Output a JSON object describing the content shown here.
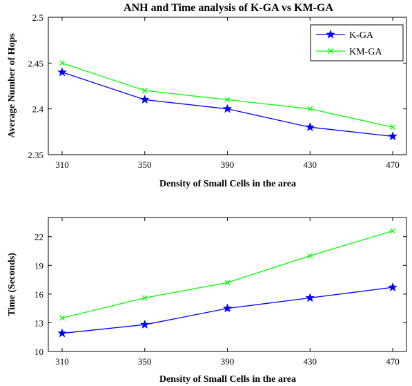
{
  "figure": {
    "title": "ANH and Time analysis of K-GA vs KM-GA"
  },
  "chart_data": [
    {
      "type": "line",
      "title": "ANH and Time analysis of K-GA vs KM-GA",
      "xlabel": "Density of Small Cells in the area",
      "ylabel": "Average Number of Hops",
      "x": [
        310,
        350,
        390,
        430,
        470
      ],
      "x_ticks": [
        "310",
        "350",
        "390",
        "430",
        "470"
      ],
      "ylim": [
        2.35,
        2.5
      ],
      "y_ticks": [
        "2.35",
        "2.4",
        "2.45",
        "2.5"
      ],
      "grid": false,
      "legend_position": "top-right",
      "series": [
        {
          "name": "K-GA",
          "color": "#0000ff",
          "marker": "star",
          "values": [
            2.44,
            2.41,
            2.4,
            2.38,
            2.37
          ]
        },
        {
          "name": "KM-GA",
          "color": "#00ff00",
          "marker": "x",
          "values": [
            2.45,
            2.42,
            2.41,
            2.4,
            2.38
          ]
        }
      ]
    },
    {
      "type": "line",
      "title": "",
      "xlabel": "Density of Small Cells in the area",
      "ylabel": "Time (Seconds)",
      "x": [
        310,
        350,
        390,
        430,
        470
      ],
      "x_ticks": [
        "310",
        "350",
        "390",
        "430",
        "470"
      ],
      "ylim": [
        10,
        24
      ],
      "y_ticks": [
        "10",
        "13",
        "16",
        "19",
        "22"
      ],
      "grid": false,
      "legend_position": "none",
      "series": [
        {
          "color": "#0000ff",
          "marker": "star",
          "values": [
            11.9,
            12.8,
            14.5,
            15.6,
            16.7
          ]
        },
        {
          "color": "#00ff00",
          "marker": "x",
          "values": [
            13.5,
            15.6,
            17.2,
            20.0,
            22.6
          ]
        }
      ]
    }
  ]
}
